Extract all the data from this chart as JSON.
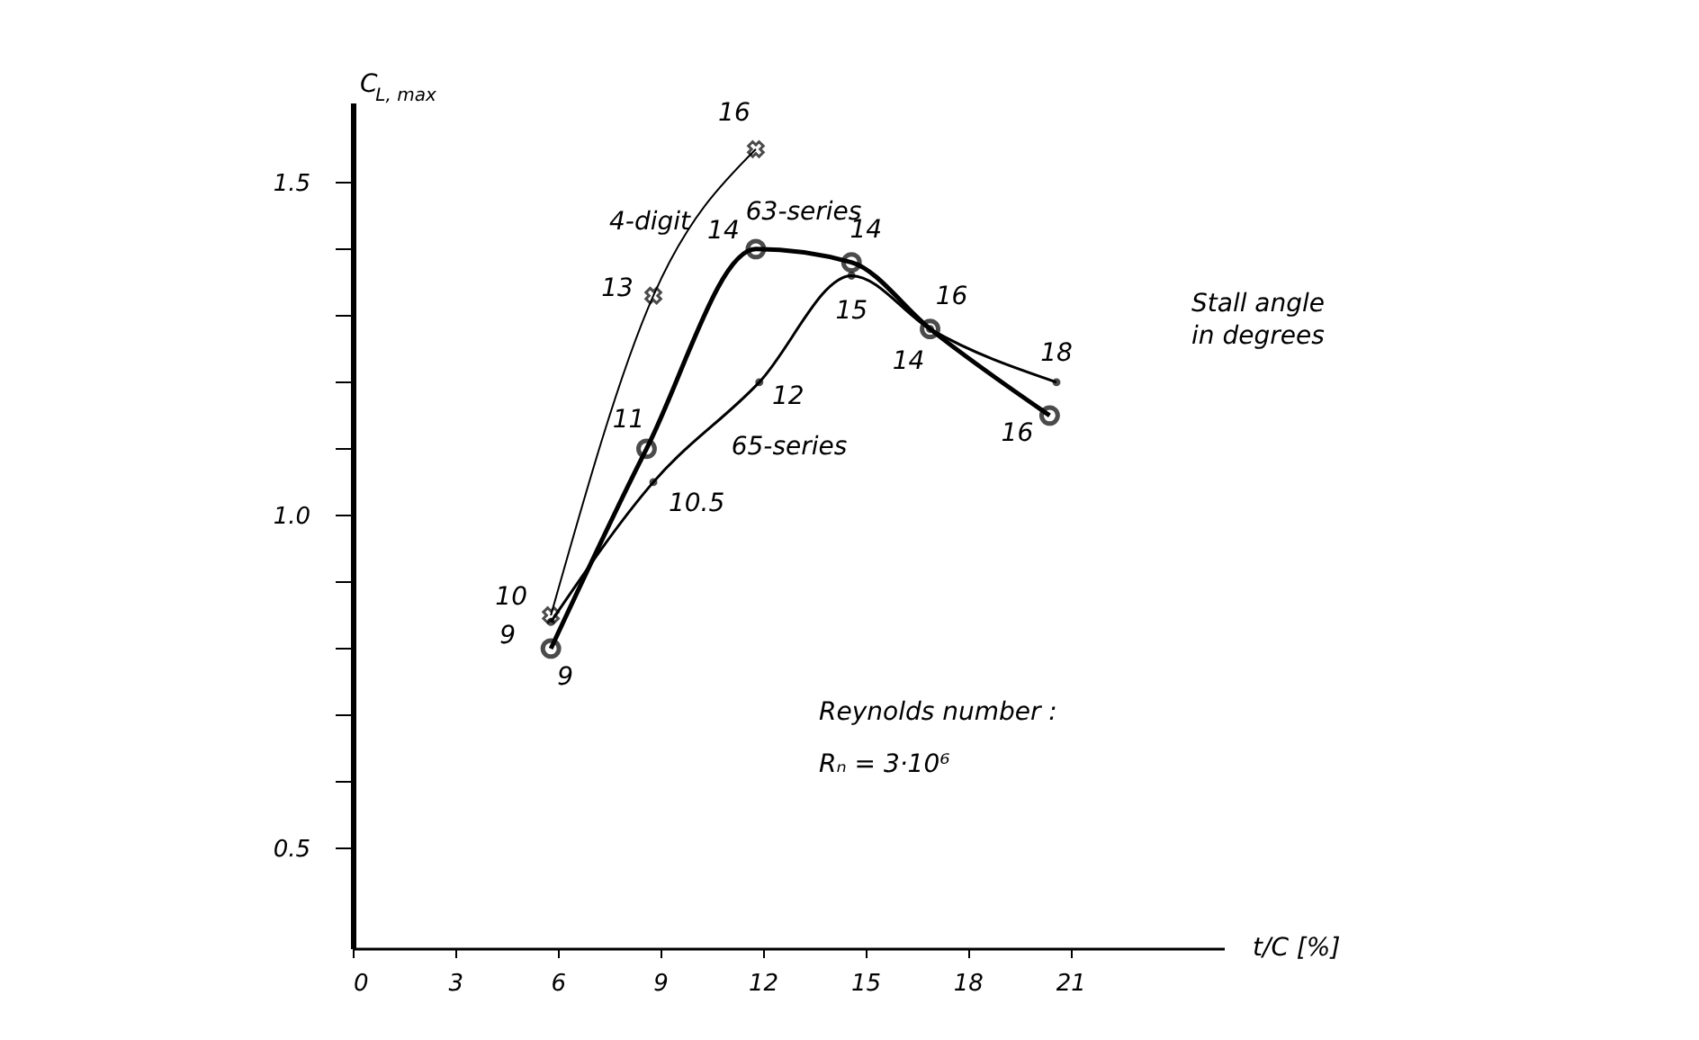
{
  "chart_data": {
    "type": "line",
    "xlabel": "t/C [%]",
    "ylabel": "C$_{L, max}$",
    "xlim": [
      0,
      25.5
    ],
    "ylim": [
      0.35,
      1.62
    ],
    "xticks": [
      0,
      3,
      6,
      9,
      12,
      15,
      18,
      21
    ],
    "yticks": [
      {
        "value": 0.5,
        "label": "0.5"
      },
      {
        "value": 0.6,
        "label": null
      },
      {
        "value": 0.7,
        "label": null
      },
      {
        "value": 0.8,
        "label": null
      },
      {
        "value": 0.9,
        "label": null
      },
      {
        "value": 1,
        "label": "1.0"
      },
      {
        "value": 1.1,
        "label": null
      },
      {
        "value": 1.2,
        "label": null
      },
      {
        "value": 1.3,
        "label": null
      },
      {
        "value": 1.4,
        "label": null
      },
      {
        "value": 1.5,
        "label": "1.5"
      }
    ],
    "grid": false,
    "series": [
      {
        "name": "4-digit",
        "color": "#000000",
        "marker": "cross",
        "x": [
          5.8,
          8.8,
          11.8
        ],
        "values": [
          0.85,
          1.33,
          1.55
        ]
      },
      {
        "name": "63-series",
        "color": "#000000",
        "marker": "circle",
        "x": [
          5.8,
          8.6,
          11.8,
          14.6,
          16.9,
          20.4
        ],
        "values": [
          0.8,
          1.1,
          1.4,
          1.38,
          1.28,
          1.15
        ]
      },
      {
        "name": "65-series",
        "color": "#000000",
        "marker": "circle",
        "x": [
          5.8,
          8.8,
          11.9,
          14.6,
          16.9,
          20.6
        ],
        "values": [
          0.84,
          1.05,
          1.2,
          1.36,
          1.28,
          1.2
        ]
      }
    ],
    "annotations": [
      {
        "text": "16",
        "x": 11.8,
        "y": 1.55
      },
      {
        "text": "13",
        "x": 8.8,
        "y": 1.33
      },
      {
        "text": "10",
        "x": 5.8,
        "y": 0.85
      },
      {
        "text": "9",
        "x": 5.8,
        "y": 0.84
      },
      {
        "text": "9",
        "x": 5.8,
        "y": 0.8
      },
      {
        "text": "11",
        "x": 8.6,
        "y": 1.1
      },
      {
        "text": "14",
        "x": 11.8,
        "y": 1.4
      },
      {
        "text": "10.5",
        "x": 8.8,
        "y": 1.05
      },
      {
        "text": "12",
        "x": 11.9,
        "y": 1.2
      },
      {
        "text": "14",
        "x": 14.6,
        "y": 1.38
      },
      {
        "text": "15",
        "x": 14.6,
        "y": 1.36
      },
      {
        "text": "16",
        "x": 16.9,
        "y": 1.28
      },
      {
        "text": "14",
        "x": 16.9,
        "y": 1.28
      },
      {
        "text": "18",
        "x": 20.6,
        "y": 1.2
      },
      {
        "text": "16",
        "x": 20.4,
        "y": 1.15
      },
      "Stall angle",
      "in degrees",
      "Reynolds number :",
      "Rₙ = 3·10⁶"
    ]
  }
}
